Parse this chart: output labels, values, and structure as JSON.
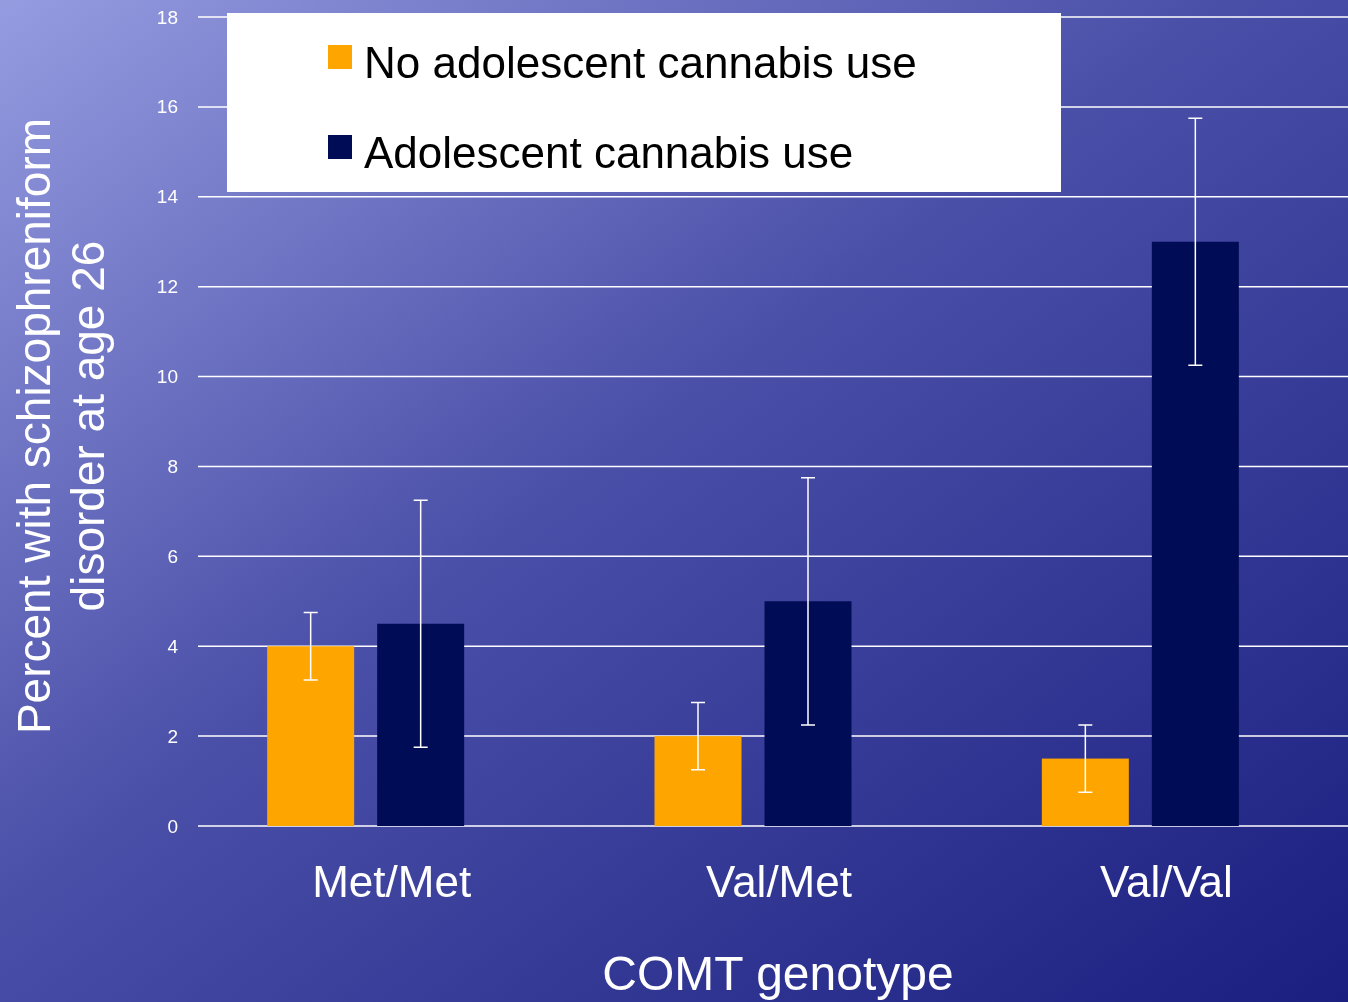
{
  "chart_data": {
    "type": "bar",
    "xlabel": "COMT genotype",
    "ylabel": "Percent with schizophreniform disorder at age 26",
    "categories": [
      "Met/Met",
      "Val/Met",
      "Val/Val"
    ],
    "series": [
      {
        "name": "No adolescent cannabis use",
        "color": "#ffa500",
        "values": [
          4,
          2,
          1.5
        ],
        "errors": [
          [
            3.25,
            4.75
          ],
          [
            1.25,
            2.75
          ],
          [
            0.75,
            2.25
          ]
        ]
      },
      {
        "name": "Adolescent cannabis use",
        "color": "#000c55",
        "values": [
          4.5,
          5,
          13
        ],
        "errors": [
          [
            1.75,
            7.25
          ],
          [
            2.25,
            7.75
          ],
          [
            10.25,
            15.75
          ]
        ]
      }
    ],
    "ylim": [
      0,
      18
    ],
    "yticks": [
      0,
      2,
      4,
      6,
      8,
      10,
      12,
      14,
      16,
      18
    ],
    "grid": "y",
    "legend": "top left"
  }
}
